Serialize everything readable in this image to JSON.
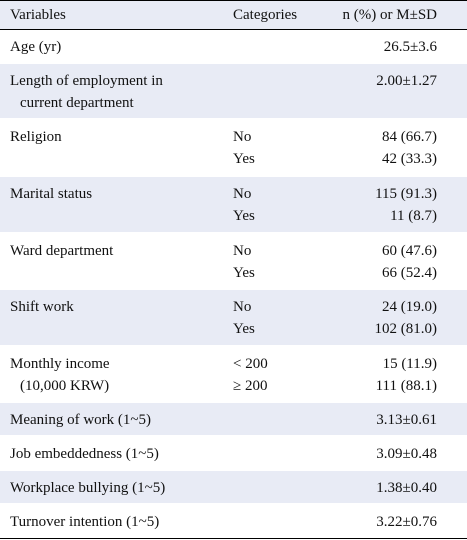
{
  "table": {
    "header": [
      "Variables",
      "Categories",
      "n (%) or M±SD"
    ],
    "rows": [
      {
        "variable": [
          "Age (yr)"
        ],
        "categories": [],
        "values": [
          "26.5±3.6"
        ]
      },
      {
        "variable": [
          "Length of employment in",
          "current department"
        ],
        "categories": [],
        "values": [
          "2.00±1.27"
        ]
      },
      {
        "variable": [
          "Religion"
        ],
        "categories": [
          "No",
          "Yes"
        ],
        "values": [
          "84 (66.7)",
          "42 (33.3)"
        ]
      },
      {
        "variable": [
          "Marital status"
        ],
        "categories": [
          "No",
          "Yes"
        ],
        "values": [
          "115 (91.3)",
          "11 (8.7)"
        ]
      },
      {
        "variable": [
          "Ward department"
        ],
        "categories": [
          "No",
          "Yes"
        ],
        "values": [
          "60 (47.6)",
          "66 (52.4)"
        ]
      },
      {
        "variable": [
          "Shift work"
        ],
        "categories": [
          "No",
          "Yes"
        ],
        "values": [
          "24 (19.0)",
          "102 (81.0)"
        ]
      },
      {
        "variable": [
          "Monthly income",
          "(10,000 KRW)"
        ],
        "categories": [
          "< 200",
          "≥ 200"
        ],
        "values": [
          "15 (11.9)",
          "111 (88.1)"
        ]
      },
      {
        "variable": [
          "Meaning of work (1~5)"
        ],
        "categories": [],
        "values": [
          "3.13±0.61"
        ]
      },
      {
        "variable": [
          "Job embeddedness (1~5)"
        ],
        "categories": [],
        "values": [
          "3.09±0.48"
        ]
      },
      {
        "variable": [
          "Workplace bullying (1~5)"
        ],
        "categories": [],
        "values": [
          "1.38±0.40"
        ]
      },
      {
        "variable": [
          "Turnover intention (1~5)"
        ],
        "categories": [],
        "values": [
          "3.22±0.76"
        ]
      }
    ]
  }
}
